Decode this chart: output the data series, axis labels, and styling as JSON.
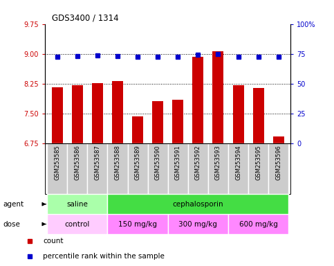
{
  "title": "GDS3400 / 1314",
  "samples": [
    "GSM253585",
    "GSM253586",
    "GSM253587",
    "GSM253588",
    "GSM253589",
    "GSM253590",
    "GSM253591",
    "GSM253592",
    "GSM253593",
    "GSM253594",
    "GSM253595",
    "GSM253596"
  ],
  "bar_values": [
    8.17,
    8.22,
    8.27,
    8.32,
    7.43,
    7.82,
    7.85,
    8.93,
    9.07,
    8.21,
    8.15,
    6.93
  ],
  "dot_values": [
    8.93,
    8.95,
    8.96,
    8.95,
    8.93,
    8.92,
    8.92,
    8.97,
    9.0,
    8.92,
    8.93,
    8.92
  ],
  "bar_color": "#cc0000",
  "dot_color": "#0000cc",
  "ylim_left": [
    6.75,
    9.75
  ],
  "yticks_left": [
    6.75,
    7.5,
    8.25,
    9.0,
    9.75
  ],
  "ylim_right": [
    0,
    100
  ],
  "yticks_right": [
    0,
    25,
    50,
    75,
    100
  ],
  "yticklabels_right": [
    "0",
    "25",
    "50",
    "75",
    "100%"
  ],
  "agent_labels": [
    {
      "text": "saline",
      "start": 0,
      "end": 3,
      "color": "#aaffaa"
    },
    {
      "text": "cephalosporin",
      "start": 3,
      "end": 12,
      "color": "#44dd44"
    }
  ],
  "dose_labels": [
    {
      "text": "control",
      "start": 0,
      "end": 3,
      "color": "#ffccff"
    },
    {
      "text": "150 mg/kg",
      "start": 3,
      "end": 6,
      "color": "#ff88ff"
    },
    {
      "text": "300 mg/kg",
      "start": 6,
      "end": 9,
      "color": "#ff88ff"
    },
    {
      "text": "600 mg/kg",
      "start": 9,
      "end": 12,
      "color": "#ff88ff"
    }
  ],
  "grid_yticks": [
    7.5,
    8.25,
    9.0
  ],
  "legend_items": [
    {
      "label": "count",
      "color": "#cc0000"
    },
    {
      "label": "percentile rank within the sample",
      "color": "#0000cc"
    }
  ],
  "xtick_bg_color": "#cccccc",
  "xtick_border_color": "#888888"
}
